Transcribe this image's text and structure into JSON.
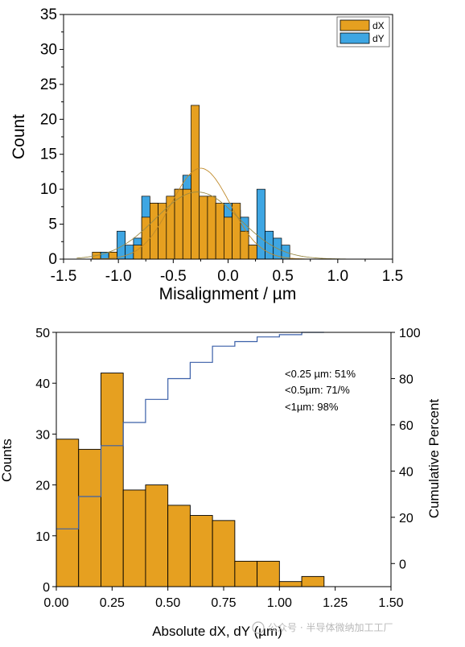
{
  "watermark": "公众号 · 半导体微纳加工工厂",
  "colors": {
    "orange": "#E6A020",
    "blue": "#3EA6E3",
    "line": "#3A5FA8",
    "curve": "#C08A2A"
  },
  "chart_data": [
    {
      "type": "bar",
      "xlabel": "Misalignment / µm",
      "ylabel": "Count",
      "xlim": [
        -1.5,
        1.5
      ],
      "ylim": [
        0,
        35
      ],
      "xticks": [
        "-1.5",
        "-1.0",
        "-0.5",
        "0.0",
        "0.5",
        "1.0",
        "1.5"
      ],
      "yticks": [
        "0",
        "5",
        "10",
        "15",
        "20",
        "25",
        "30",
        "35"
      ],
      "legend": {
        "placement": "top-right",
        "entries": [
          "dX",
          "dY"
        ]
      },
      "bin_width": 0.075,
      "series": [
        {
          "name": "dX",
          "bin_centers": [
            -1.2,
            -1.05,
            -0.825,
            -0.75,
            -0.675,
            -0.6,
            -0.525,
            -0.45,
            -0.375,
            -0.3,
            -0.225,
            -0.15,
            -0.075,
            0.0,
            0.075,
            0.15,
            0.225
          ],
          "values": [
            1,
            1,
            2,
            6,
            8,
            8,
            9,
            10,
            10,
            22,
            9,
            9,
            8,
            6,
            8,
            4,
            2
          ],
          "fit": {
            "kind": "gaussian",
            "mean": -0.25,
            "sd": 0.27,
            "peak": 13
          }
        },
        {
          "name": "dY",
          "bin_centers": [
            -1.125,
            -1.05,
            -0.975,
            -0.9,
            -0.825,
            -0.75,
            -0.675,
            -0.6,
            -0.525,
            -0.45,
            -0.375,
            -0.3,
            -0.225,
            -0.15,
            -0.075,
            0.0,
            0.075,
            0.15,
            0.225,
            0.3,
            0.375,
            0.45,
            0.525
          ],
          "values": [
            1,
            1,
            4,
            2,
            3,
            9,
            8,
            6,
            9,
            10,
            12,
            9,
            8,
            7,
            6,
            8,
            7,
            6,
            2,
            10,
            4,
            3,
            2
          ],
          "fit": {
            "kind": "gaussian",
            "mean": -0.28,
            "sd": 0.38,
            "peak": 9.6
          }
        }
      ]
    },
    {
      "type": "bar",
      "xlabel": "Absolute dX, dY (µm)",
      "ylabel": "Counts",
      "ylabel_right": "Cumulative Percent",
      "xlim": [
        0,
        1.5
      ],
      "ylim": [
        0,
        50
      ],
      "ylim_right": [
        -10,
        100
      ],
      "xticks": [
        "0.00",
        "0.25",
        "0.50",
        "0.75",
        "1.00",
        "1.25",
        "1.50"
      ],
      "yticks": [
        "0",
        "10",
        "20",
        "30",
        "40",
        "50"
      ],
      "yticks_right": [
        "0",
        "20",
        "40",
        "60",
        "80",
        "100"
      ],
      "bin_width": 0.1,
      "bin_starts": [
        0.0,
        0.1,
        0.2,
        0.3,
        0.4,
        0.5,
        0.6,
        0.7,
        0.8,
        0.9,
        1.0,
        1.1
      ],
      "values": [
        29,
        27,
        42,
        19,
        20,
        16,
        14,
        13,
        5,
        5,
        1,
        2
      ],
      "cumulative_percent": [
        15,
        29,
        51,
        61,
        71,
        80,
        87,
        94,
        96,
        98,
        99,
        100
      ],
      "annotations": [
        "<0.25 µm: 51%",
        "<0.5µm: 71/%",
        "<1µm: 98%"
      ]
    }
  ]
}
